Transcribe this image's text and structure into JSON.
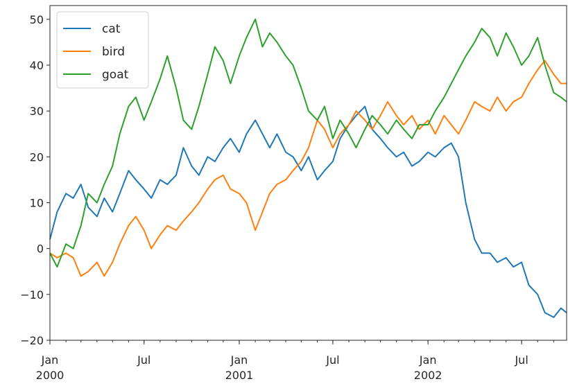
{
  "chart_data": {
    "type": "line",
    "title": "",
    "xlabel": "",
    "ylabel": "",
    "xlim": [
      "2000-01-01",
      "2002-09-26"
    ],
    "ylim": [
      -20,
      53
    ],
    "yticks": [
      -20,
      -10,
      0,
      10,
      20,
      30,
      40,
      50
    ],
    "xticks": [
      {
        "date": "2000-01-01",
        "label": "Jan",
        "year": "2000"
      },
      {
        "date": "2000-07-01",
        "label": "Jul",
        "year": ""
      },
      {
        "date": "2001-01-01",
        "label": "Jan",
        "year": "2001"
      },
      {
        "date": "2001-07-01",
        "label": "Jul",
        "year": ""
      },
      {
        "date": "2002-01-01",
        "label": "Jan",
        "year": "2002"
      },
      {
        "date": "2002-07-01",
        "label": "Jul",
        "year": ""
      }
    ],
    "grid": false,
    "legend_position": "top-left",
    "series": [
      {
        "name": "cat",
        "color": "#1f77b4",
        "points": [
          [
            "2000-01-01",
            2
          ],
          [
            "2000-01-15",
            8
          ],
          [
            "2000-02-01",
            12
          ],
          [
            "2000-02-15",
            11
          ],
          [
            "2000-03-01",
            14
          ],
          [
            "2000-03-15",
            9
          ],
          [
            "2000-04-01",
            7
          ],
          [
            "2000-04-15",
            11
          ],
          [
            "2000-05-01",
            8
          ],
          [
            "2000-05-15",
            12
          ],
          [
            "2000-06-01",
            17
          ],
          [
            "2000-06-15",
            15
          ],
          [
            "2000-07-01",
            13
          ],
          [
            "2000-07-15",
            11
          ],
          [
            "2000-08-01",
            15
          ],
          [
            "2000-08-15",
            14
          ],
          [
            "2000-09-01",
            16
          ],
          [
            "2000-09-15",
            22
          ],
          [
            "2000-10-01",
            18
          ],
          [
            "2000-10-15",
            16
          ],
          [
            "2000-11-01",
            20
          ],
          [
            "2000-11-15",
            19
          ],
          [
            "2000-12-01",
            22
          ],
          [
            "2000-12-15",
            24
          ],
          [
            "2001-01-01",
            21
          ],
          [
            "2001-01-15",
            25
          ],
          [
            "2001-02-01",
            28
          ],
          [
            "2001-02-15",
            25
          ],
          [
            "2001-03-01",
            22
          ],
          [
            "2001-03-15",
            25
          ],
          [
            "2001-04-01",
            21
          ],
          [
            "2001-04-15",
            20
          ],
          [
            "2001-05-01",
            17
          ],
          [
            "2001-05-15",
            20
          ],
          [
            "2001-06-01",
            15
          ],
          [
            "2001-06-15",
            17
          ],
          [
            "2001-07-01",
            19
          ],
          [
            "2001-07-15",
            24
          ],
          [
            "2001-08-01",
            27
          ],
          [
            "2001-08-15",
            29
          ],
          [
            "2001-09-01",
            31
          ],
          [
            "2001-09-15",
            26
          ],
          [
            "2001-10-01",
            24
          ],
          [
            "2001-10-15",
            22
          ],
          [
            "2001-11-01",
            20
          ],
          [
            "2001-11-15",
            21
          ],
          [
            "2001-12-01",
            18
          ],
          [
            "2001-12-15",
            19
          ],
          [
            "2002-01-01",
            21
          ],
          [
            "2002-01-15",
            20
          ],
          [
            "2002-02-01",
            22
          ],
          [
            "2002-02-15",
            23
          ],
          [
            "2002-03-01",
            20
          ],
          [
            "2002-03-15",
            10
          ],
          [
            "2002-04-01",
            2
          ],
          [
            "2002-04-15",
            -1
          ],
          [
            "2002-05-01",
            -1
          ],
          [
            "2002-05-15",
            -3
          ],
          [
            "2002-06-01",
            -2
          ],
          [
            "2002-06-15",
            -4
          ],
          [
            "2002-07-01",
            -3
          ],
          [
            "2002-07-15",
            -8
          ],
          [
            "2002-08-01",
            -10
          ],
          [
            "2002-08-15",
            -14
          ],
          [
            "2002-09-01",
            -15
          ],
          [
            "2002-09-15",
            -13
          ],
          [
            "2002-09-26",
            -14
          ]
        ]
      },
      {
        "name": "bird",
        "color": "#ff7f0e",
        "points": [
          [
            "2000-01-01",
            -1
          ],
          [
            "2000-01-15",
            -2
          ],
          [
            "2000-02-01",
            -1
          ],
          [
            "2000-02-15",
            -2
          ],
          [
            "2000-03-01",
            -6
          ],
          [
            "2000-03-15",
            -5
          ],
          [
            "2000-04-01",
            -3
          ],
          [
            "2000-04-15",
            -6
          ],
          [
            "2000-05-01",
            -3
          ],
          [
            "2000-05-15",
            1
          ],
          [
            "2000-06-01",
            5
          ],
          [
            "2000-06-15",
            7
          ],
          [
            "2000-07-01",
            4
          ],
          [
            "2000-07-15",
            0
          ],
          [
            "2000-08-01",
            3
          ],
          [
            "2000-08-15",
            5
          ],
          [
            "2000-09-01",
            4
          ],
          [
            "2000-09-15",
            6
          ],
          [
            "2000-10-01",
            8
          ],
          [
            "2000-10-15",
            10
          ],
          [
            "2000-11-01",
            13
          ],
          [
            "2000-11-15",
            15
          ],
          [
            "2000-12-01",
            16
          ],
          [
            "2000-12-15",
            13
          ],
          [
            "2001-01-01",
            12
          ],
          [
            "2001-01-15",
            10
          ],
          [
            "2001-02-01",
            4
          ],
          [
            "2001-02-15",
            8
          ],
          [
            "2001-03-01",
            12
          ],
          [
            "2001-03-15",
            14
          ],
          [
            "2001-04-01",
            15
          ],
          [
            "2001-04-15",
            17
          ],
          [
            "2001-05-01",
            19
          ],
          [
            "2001-05-15",
            22
          ],
          [
            "2001-06-01",
            28
          ],
          [
            "2001-06-15",
            26
          ],
          [
            "2001-07-01",
            22
          ],
          [
            "2001-07-15",
            25
          ],
          [
            "2001-08-01",
            27
          ],
          [
            "2001-08-15",
            30
          ],
          [
            "2001-09-01",
            28
          ],
          [
            "2001-09-15",
            26
          ],
          [
            "2001-10-01",
            29
          ],
          [
            "2001-10-15",
            32
          ],
          [
            "2001-11-01",
            29
          ],
          [
            "2001-11-15",
            27
          ],
          [
            "2001-12-01",
            29
          ],
          [
            "2001-12-15",
            26
          ],
          [
            "2002-01-01",
            28
          ],
          [
            "2002-01-15",
            25
          ],
          [
            "2002-02-01",
            29
          ],
          [
            "2002-02-15",
            27
          ],
          [
            "2002-03-01",
            25
          ],
          [
            "2002-03-15",
            28
          ],
          [
            "2002-04-01",
            32
          ],
          [
            "2002-04-15",
            31
          ],
          [
            "2002-05-01",
            30
          ],
          [
            "2002-05-15",
            33
          ],
          [
            "2002-06-01",
            30
          ],
          [
            "2002-06-15",
            32
          ],
          [
            "2002-07-01",
            33
          ],
          [
            "2002-07-15",
            36
          ],
          [
            "2002-08-01",
            39
          ],
          [
            "2002-08-15",
            41
          ],
          [
            "2002-09-01",
            38
          ],
          [
            "2002-09-15",
            36
          ],
          [
            "2002-09-26",
            36
          ]
        ]
      },
      {
        "name": "goat",
        "color": "#2ca02c",
        "points": [
          [
            "2000-01-01",
            -1
          ],
          [
            "2000-01-15",
            -4
          ],
          [
            "2000-02-01",
            1
          ],
          [
            "2000-02-15",
            0
          ],
          [
            "2000-03-01",
            5
          ],
          [
            "2000-03-15",
            12
          ],
          [
            "2000-04-01",
            10
          ],
          [
            "2000-04-15",
            14
          ],
          [
            "2000-05-01",
            18
          ],
          [
            "2000-05-15",
            25
          ],
          [
            "2000-06-01",
            31
          ],
          [
            "2000-06-15",
            33
          ],
          [
            "2000-07-01",
            28
          ],
          [
            "2000-07-15",
            32
          ],
          [
            "2000-08-01",
            37
          ],
          [
            "2000-08-15",
            42
          ],
          [
            "2000-09-01",
            35
          ],
          [
            "2000-09-15",
            28
          ],
          [
            "2000-10-01",
            26
          ],
          [
            "2000-10-15",
            31
          ],
          [
            "2000-11-01",
            38
          ],
          [
            "2000-11-15",
            44
          ],
          [
            "2000-12-01",
            41
          ],
          [
            "2000-12-15",
            36
          ],
          [
            "2001-01-01",
            42
          ],
          [
            "2001-01-15",
            46
          ],
          [
            "2001-02-01",
            50
          ],
          [
            "2001-02-15",
            44
          ],
          [
            "2001-03-01",
            47
          ],
          [
            "2001-03-15",
            45
          ],
          [
            "2001-04-01",
            42
          ],
          [
            "2001-04-15",
            40
          ],
          [
            "2001-05-01",
            35
          ],
          [
            "2001-05-15",
            30
          ],
          [
            "2001-06-01",
            28
          ],
          [
            "2001-06-15",
            31
          ],
          [
            "2001-07-01",
            24
          ],
          [
            "2001-07-15",
            28
          ],
          [
            "2001-08-01",
            25
          ],
          [
            "2001-08-15",
            22
          ],
          [
            "2001-09-01",
            26
          ],
          [
            "2001-09-15",
            29
          ],
          [
            "2001-10-01",
            27
          ],
          [
            "2001-10-15",
            25
          ],
          [
            "2001-11-01",
            28
          ],
          [
            "2001-11-15",
            26
          ],
          [
            "2001-12-01",
            24
          ],
          [
            "2001-12-15",
            27
          ],
          [
            "2002-01-01",
            27
          ],
          [
            "2002-01-15",
            30
          ],
          [
            "2002-02-01",
            33
          ],
          [
            "2002-02-15",
            36
          ],
          [
            "2002-03-01",
            39
          ],
          [
            "2002-03-15",
            42
          ],
          [
            "2002-04-01",
            45
          ],
          [
            "2002-04-15",
            48
          ],
          [
            "2002-05-01",
            46
          ],
          [
            "2002-05-15",
            42
          ],
          [
            "2002-06-01",
            47
          ],
          [
            "2002-06-15",
            44
          ],
          [
            "2002-07-01",
            40
          ],
          [
            "2002-07-15",
            42
          ],
          [
            "2002-08-01",
            46
          ],
          [
            "2002-08-15",
            40
          ],
          [
            "2002-09-01",
            34
          ],
          [
            "2002-09-15",
            33
          ],
          [
            "2002-09-26",
            32
          ]
        ]
      }
    ]
  }
}
